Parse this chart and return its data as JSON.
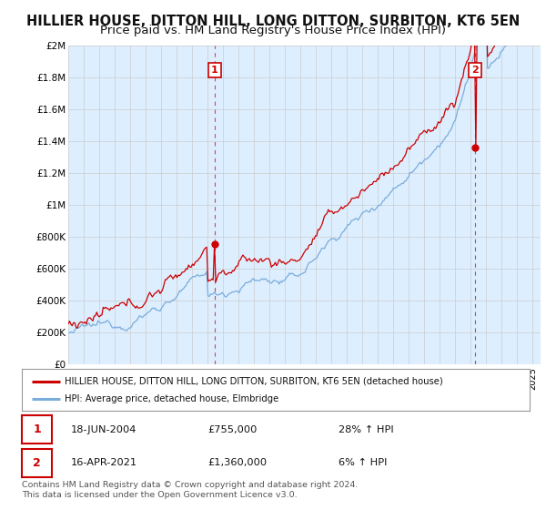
{
  "title": "HILLIER HOUSE, DITTON HILL, LONG DITTON, SURBITON, KT6 5EN",
  "subtitle": "Price paid vs. HM Land Registry's House Price Index (HPI)",
  "ylabel_ticks": [
    "£0",
    "£200K",
    "£400K",
    "£600K",
    "£800K",
    "£1M",
    "£1.2M",
    "£1.4M",
    "£1.6M",
    "£1.8M",
    "£2M"
  ],
  "ytick_values": [
    0,
    200000,
    400000,
    600000,
    800000,
    1000000,
    1200000,
    1400000,
    1600000,
    1800000,
    2000000
  ],
  "ylim": [
    0,
    2000000
  ],
  "xlim_start": 1995.0,
  "xlim_end": 2025.5,
  "transaction1_x": 2004.46,
  "transaction1_y": 755000,
  "transaction1_label": "1",
  "transaction2_x": 2021.29,
  "transaction2_y": 1360000,
  "transaction2_label": "2",
  "red_line_color": "#cc0000",
  "blue_line_color": "#7aaddb",
  "annotation_box_color": "#cc0000",
  "grid_color": "#cccccc",
  "chart_bg_color": "#ddeeff",
  "background_color": "#ffffff",
  "title_fontsize": 10.5,
  "subtitle_fontsize": 9.5,
  "legend_label_red": "HILLIER HOUSE, DITTON HILL, LONG DITTON, SURBITON, KT6 5EN (detached house)",
  "legend_label_blue": "HPI: Average price, detached house, Elmbridge",
  "note1_label": "1",
  "note1_date": "18-JUN-2004",
  "note1_price": "£755,000",
  "note1_hpi": "28% ↑ HPI",
  "note2_label": "2",
  "note2_date": "16-APR-2021",
  "note2_price": "£1,360,000",
  "note2_hpi": "6% ↑ HPI",
  "footer": "Contains HM Land Registry data © Crown copyright and database right 2024.\nThis data is licensed under the Open Government Licence v3.0."
}
